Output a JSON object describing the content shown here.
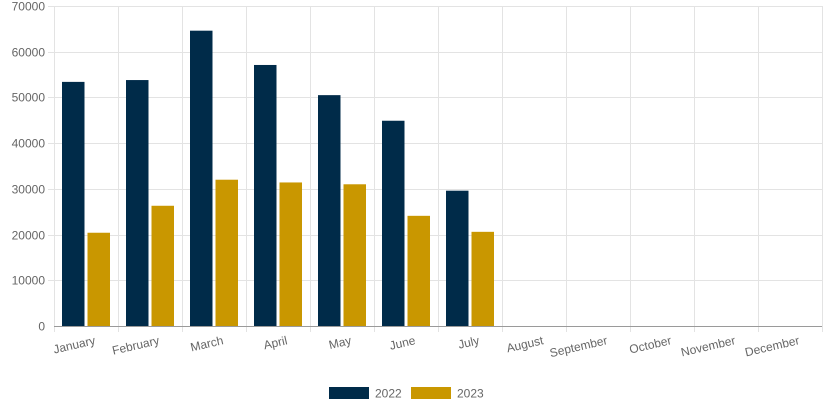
{
  "chart_data": {
    "type": "bar",
    "title": "",
    "xlabel": "",
    "ylabel": "",
    "categories": [
      "January",
      "February",
      "March",
      "April",
      "May",
      "June",
      "July",
      "August",
      "September",
      "October",
      "November",
      "December"
    ],
    "series": [
      {
        "name": "2022",
        "color": "#002b49",
        "values": [
          53400,
          53800,
          64600,
          57100,
          50500,
          44900,
          29600,
          null,
          null,
          null,
          null,
          null
        ]
      },
      {
        "name": "2023",
        "color": "#c99700",
        "values": [
          20400,
          26300,
          32000,
          31400,
          31000,
          24100,
          20600,
          null,
          null,
          null,
          null,
          null
        ]
      }
    ],
    "ylim": [
      0,
      70000
    ],
    "yticks": [
      0,
      10000,
      20000,
      30000,
      40000,
      50000,
      60000,
      70000
    ],
    "grid": true,
    "legend_position": "bottom"
  }
}
